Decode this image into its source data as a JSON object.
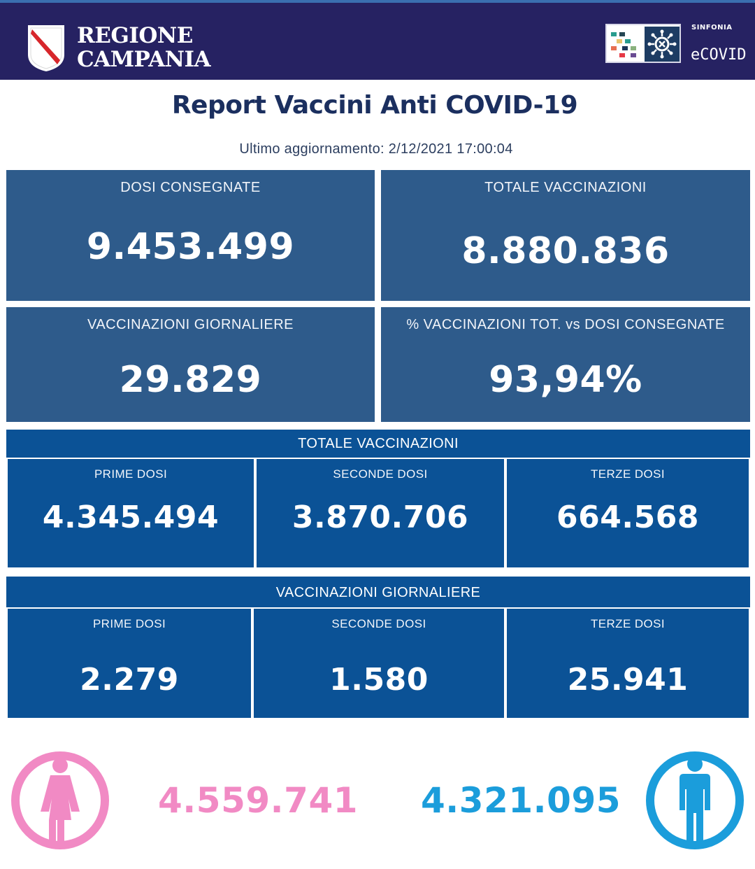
{
  "header": {
    "region_line1": "REGIONE",
    "region_line2": "CAMPANIA",
    "sinfonia_label": "SINFONIA",
    "ecovid_label": "eCOVID"
  },
  "report": {
    "title": "Report Vaccini Anti COVID-19",
    "update_label": "Ultimo aggiornamento: 2/12/2021",
    "update_time": "17:00:04"
  },
  "summary_cards": [
    {
      "label": "DOSI  CONSEGNATE",
      "value": "9.453.499"
    },
    {
      "label": "TOTALE VACCINAZIONI",
      "value": "8.880.836"
    },
    {
      "label": "VACCINAZIONI GIORNALIERE",
      "value": "29.829"
    },
    {
      "label": "% VACCINAZIONI TOT. vs DOSI CONSEGNATE",
      "value": "93,94%"
    }
  ],
  "totale_vaccinazioni": {
    "title": "TOTALE VACCINAZIONI",
    "cells": [
      {
        "label": "PRIME DOSI",
        "value": "4.345.494"
      },
      {
        "label": "SECONDE DOSI",
        "value": "3.870.706"
      },
      {
        "label": "TERZE DOSI",
        "value": "664.568"
      }
    ]
  },
  "vaccinazioni_giornaliere": {
    "title": "VACCINAZIONI GIORNALIERE",
    "cells": [
      {
        "label": "PRIME DOSI",
        "value": "2.279"
      },
      {
        "label": "SECONDE DOSI",
        "value": "1.580"
      },
      {
        "label": "TERZE DOSI",
        "value": "25.941"
      }
    ]
  },
  "gender": {
    "female": {
      "value": "4.559.741",
      "color": "#f18ac4",
      "icon": "female-icon"
    },
    "male": {
      "value": "4.321.095",
      "color": "#1b9ddb",
      "icon": "male-icon"
    }
  },
  "colors": {
    "header_bg": "#262262",
    "card_bg": "#2e5b8b",
    "section_bg": "#0b5296",
    "title_color": "#1b2f5f"
  }
}
